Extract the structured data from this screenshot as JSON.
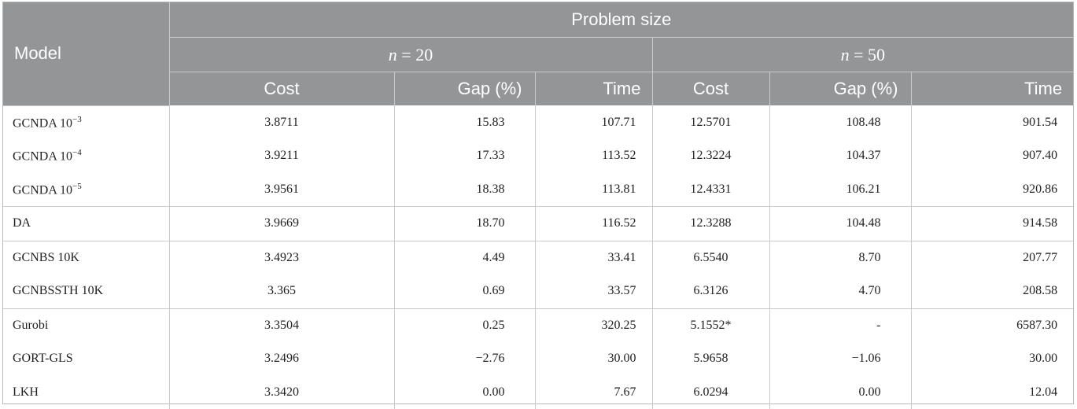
{
  "header": {
    "model_label": "Model",
    "group_label": "Problem size",
    "groups": [
      {
        "var": "n",
        "eq": " = 20"
      },
      {
        "var": "n",
        "eq": " = 50"
      }
    ],
    "columns": [
      "Cost",
      "Gap (%)",
      "Time",
      "Cost",
      "Gap (%)",
      "Time"
    ]
  },
  "rows": [
    {
      "model": "GCNDA 10",
      "sup": "−3",
      "cells": [
        "3.8711",
        "15.83",
        "107.71",
        "12.5701",
        "108.48",
        "901.54"
      ]
    },
    {
      "model": "GCNDA 10",
      "sup": "−4",
      "cells": [
        "3.9211",
        "17.33",
        "113.52",
        "12.3224",
        "104.37",
        "907.40"
      ]
    },
    {
      "model": "GCNDA 10",
      "sup": "−5",
      "cells": [
        "3.9561",
        "18.38",
        "113.81",
        "12.4331",
        "106.21",
        "920.86"
      ]
    },
    {
      "model": "DA",
      "sup": "",
      "cells": [
        "3.9669",
        "18.70",
        "116.52",
        "12.3288",
        "104.48",
        "914.58"
      ]
    },
    {
      "model": "GCNBS 10K",
      "sup": "",
      "cells": [
        "3.4923",
        "4.49",
        "33.41",
        "6.5540",
        "8.70",
        "207.77"
      ]
    },
    {
      "model": "GCNBSSTH 10K",
      "sup": "",
      "cells": [
        "3.365",
        "0.69",
        "33.57",
        "6.3126",
        "4.70",
        "208.58"
      ]
    },
    {
      "model": "Gurobi",
      "sup": "",
      "cells": [
        "3.3504",
        "0.25",
        "320.25",
        "5.1552*",
        "-",
        "6587.30"
      ]
    },
    {
      "model": "GORT-GLS",
      "sup": "",
      "cells": [
        "3.2496",
        "−2.76",
        "30.00",
        "5.9658",
        "−1.06",
        "30.00"
      ]
    },
    {
      "model": "LKH",
      "sup": "",
      "cells": [
        "3.3420",
        "0.00",
        "7.67",
        "6.0294",
        "0.00",
        "12.04"
      ]
    }
  ]
}
